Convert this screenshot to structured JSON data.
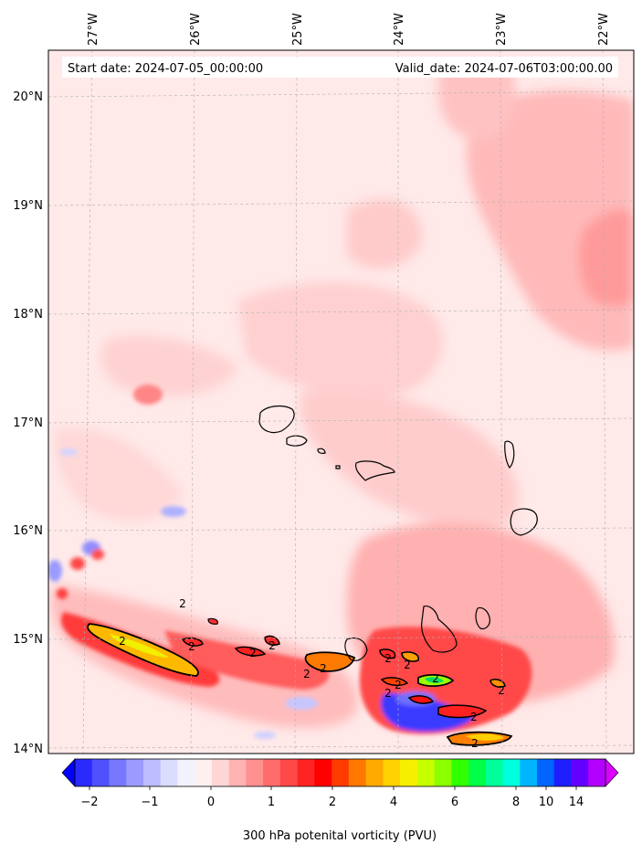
{
  "chart_data": {
    "type": "heatmap",
    "header": {
      "start_label": "Start date: 2024-07-05_00:00:00",
      "valid_label": "Valid_date: 2024-07-06T03:00:00.00"
    },
    "lon_ticks": [
      "27°W",
      "26°W",
      "25°W",
      "24°W",
      "23°W",
      "22°W"
    ],
    "lat_ticks": [
      "20°N",
      "19°N",
      "18°N",
      "17°N",
      "16°N",
      "15°N",
      "14°N"
    ],
    "lon_range": [
      -27.3,
      -21.8
    ],
    "lat_range": [
      13.95,
      20.42
    ],
    "grid": true,
    "colorbar": {
      "label": "300 hPa potenital vorticity (PVU)",
      "tick_labels": [
        "−2",
        "−1",
        "0",
        "1",
        "2",
        "4",
        "6",
        "8",
        "10",
        "14"
      ],
      "extend": "both",
      "colors": [
        "#0000ff",
        "#2a2aff",
        "#5050ff",
        "#7777ff",
        "#9b9bff",
        "#bcbcff",
        "#dcdcff",
        "#f2f2ff",
        "#fff0f0",
        "#ffd6d6",
        "#ffb3b3",
        "#ff9090",
        "#ff6c6c",
        "#ff4848",
        "#ff2424",
        "#ff0000",
        "#ff3c00",
        "#ff7800",
        "#ffaa00",
        "#ffd200",
        "#f5f000",
        "#c8ff00",
        "#8cff00",
        "#32ff00",
        "#00ff46",
        "#00ff9a",
        "#00ffdc",
        "#00b4ff",
        "#0064ff",
        "#1e1eff",
        "#6400ff",
        "#b400ff",
        "#dc00ff"
      ]
    },
    "contour_labels": [
      "2",
      "2",
      "2",
      "2",
      "2",
      "2",
      "2",
      "2",
      "2",
      "2",
      "2",
      "2",
      "2",
      "2",
      "2"
    ]
  }
}
